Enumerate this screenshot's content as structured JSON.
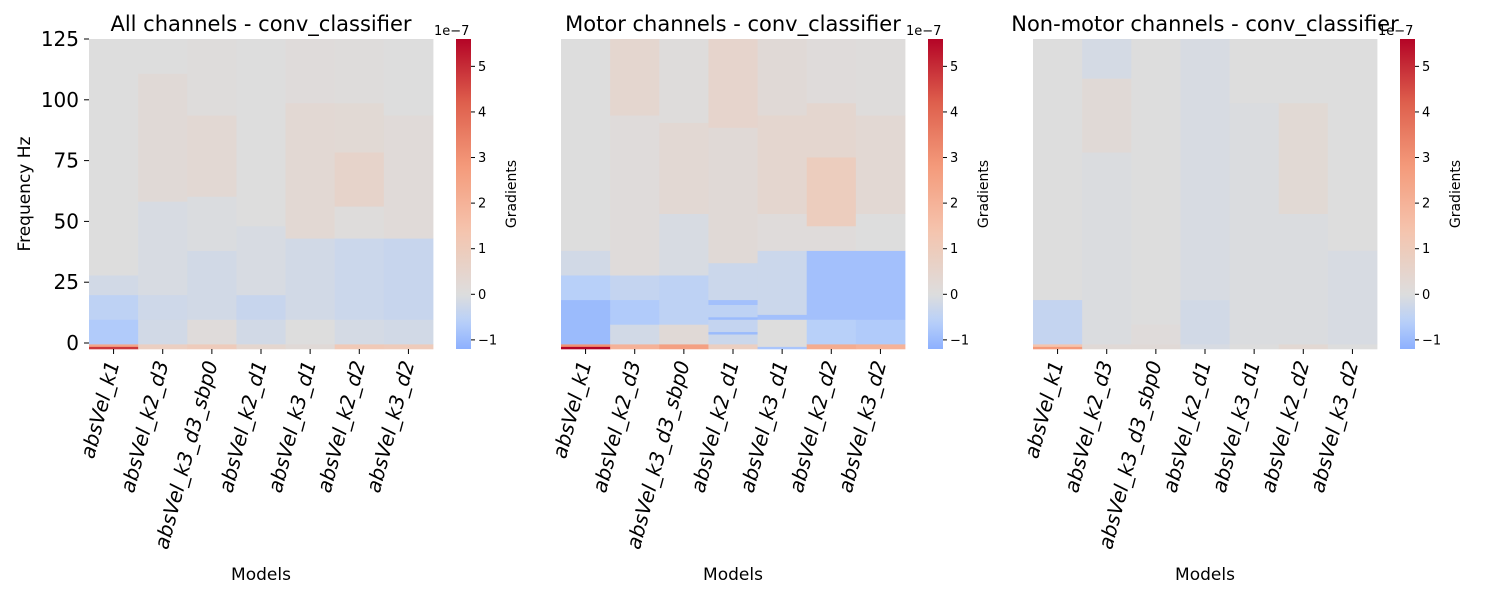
{
  "chart_data": [
    {
      "type": "heatmap",
      "title": "All channels - conv_classifier",
      "xlabel": "Models",
      "ylabel": "Frequency Hz",
      "models": [
        "absVel_k1",
        "absVel_k2_d3",
        "absVel_k3_d3_sbp0",
        "absVel_k2_d1",
        "absVel_k3_d1",
        "absVel_k2_d2",
        "absVel_k3_d2"
      ],
      "y_ticks": [
        "0",
        "25",
        "50",
        "75",
        "100",
        "125"
      ],
      "ylim": [
        0,
        125
      ],
      "colorbar": {
        "label": "Gradients",
        "exponent": "1e−7",
        "ticks": [
          "−1",
          "0",
          "1",
          "2",
          "3",
          "4",
          "5"
        ],
        "vmin": -1.2,
        "vmax": 5.6,
        "cmap": "coolwarm"
      },
      "cells": [
        {
          "model": 0,
          "from": 0,
          "to": 1,
          "value": 4.8
        },
        {
          "model": 0,
          "from": 1,
          "to": 2,
          "value": 2.4
        },
        {
          "model": 0,
          "from": 2,
          "to": 12,
          "value": -0.7
        },
        {
          "model": 0,
          "from": 12,
          "to": 22,
          "value": -0.5
        },
        {
          "model": 0,
          "from": 22,
          "to": 30,
          "value": -0.2
        },
        {
          "model": 0,
          "from": 30,
          "to": 126,
          "value": 0.0
        },
        {
          "model": 1,
          "from": 0,
          "to": 2,
          "value": 0.8
        },
        {
          "model": 1,
          "from": 2,
          "to": 12,
          "value": -0.2
        },
        {
          "model": 1,
          "from": 12,
          "to": 22,
          "value": -0.25
        },
        {
          "model": 1,
          "from": 22,
          "to": 60,
          "value": -0.1
        },
        {
          "model": 1,
          "from": 60,
          "to": 112,
          "value": 0.2
        },
        {
          "model": 1,
          "from": 112,
          "to": 126,
          "value": 0.0
        },
        {
          "model": 2,
          "from": 0,
          "to": 2,
          "value": 1.0
        },
        {
          "model": 2,
          "from": 2,
          "to": 12,
          "value": 0.1
        },
        {
          "model": 2,
          "from": 12,
          "to": 40,
          "value": -0.2
        },
        {
          "model": 2,
          "from": 40,
          "to": 62,
          "value": -0.05
        },
        {
          "model": 2,
          "from": 62,
          "to": 95,
          "value": 0.3
        },
        {
          "model": 2,
          "from": 95,
          "to": 126,
          "value": 0.05
        },
        {
          "model": 3,
          "from": 0,
          "to": 2,
          "value": 0.4
        },
        {
          "model": 3,
          "from": 2,
          "to": 12,
          "value": -0.2
        },
        {
          "model": 3,
          "from": 12,
          "to": 22,
          "value": -0.35
        },
        {
          "model": 3,
          "from": 22,
          "to": 50,
          "value": -0.1
        },
        {
          "model": 3,
          "from": 50,
          "to": 126,
          "value": 0.0
        },
        {
          "model": 4,
          "from": 0,
          "to": 2,
          "value": 0.2
        },
        {
          "model": 4,
          "from": 2,
          "to": 12,
          "value": 0.0
        },
        {
          "model": 4,
          "from": 12,
          "to": 45,
          "value": -0.2
        },
        {
          "model": 4,
          "from": 45,
          "to": 100,
          "value": 0.3
        },
        {
          "model": 4,
          "from": 100,
          "to": 126,
          "value": 0.1
        },
        {
          "model": 5,
          "from": 0,
          "to": 2,
          "value": 1.1
        },
        {
          "model": 5,
          "from": 2,
          "to": 12,
          "value": -0.15
        },
        {
          "model": 5,
          "from": 12,
          "to": 45,
          "value": -0.3
        },
        {
          "model": 5,
          "from": 45,
          "to": 58,
          "value": 0.05
        },
        {
          "model": 5,
          "from": 58,
          "to": 80,
          "value": 0.55
        },
        {
          "model": 5,
          "from": 80,
          "to": 100,
          "value": 0.25
        },
        {
          "model": 5,
          "from": 100,
          "to": 126,
          "value": 0.05
        },
        {
          "model": 6,
          "from": 0,
          "to": 2,
          "value": 1.0
        },
        {
          "model": 6,
          "from": 2,
          "to": 12,
          "value": -0.2
        },
        {
          "model": 6,
          "from": 12,
          "to": 45,
          "value": -0.35
        },
        {
          "model": 6,
          "from": 45,
          "to": 95,
          "value": 0.15
        },
        {
          "model": 6,
          "from": 95,
          "to": 126,
          "value": 0.0
        }
      ]
    },
    {
      "type": "heatmap",
      "title": "Motor channels - conv_classifier",
      "xlabel": "Models",
      "ylabel": "",
      "models": [
        "absVel_k1",
        "absVel_k2_d3",
        "absVel_k3_d3_sbp0",
        "absVel_k2_d1",
        "absVel_k3_d1",
        "absVel_k2_d2",
        "absVel_k3_d2"
      ],
      "y_ticks": [],
      "ylim": [
        0,
        125
      ],
      "colorbar": {
        "label": "Gradients",
        "exponent": "1e−7",
        "ticks": [
          "−1",
          "0",
          "1",
          "2",
          "3",
          "4",
          "5"
        ],
        "vmin": -1.2,
        "vmax": 5.6,
        "cmap": "coolwarm"
      },
      "cells": [
        {
          "model": 0,
          "from": 0,
          "to": 1,
          "value": 5.6
        },
        {
          "model": 0,
          "from": 1,
          "to": 2,
          "value": 3.0
        },
        {
          "model": 0,
          "from": 2,
          "to": 20,
          "value": -1.0
        },
        {
          "model": 0,
          "from": 20,
          "to": 30,
          "value": -0.6
        },
        {
          "model": 0,
          "from": 30,
          "to": 40,
          "value": -0.2
        },
        {
          "model": 0,
          "from": 40,
          "to": 126,
          "value": 0.0
        },
        {
          "model": 1,
          "from": 0,
          "to": 2,
          "value": 2.0
        },
        {
          "model": 1,
          "from": 2,
          "to": 10,
          "value": -0.2
        },
        {
          "model": 1,
          "from": 10,
          "to": 20,
          "value": -0.7
        },
        {
          "model": 1,
          "from": 20,
          "to": 30,
          "value": -0.4
        },
        {
          "model": 1,
          "from": 30,
          "to": 95,
          "value": 0.1
        },
        {
          "model": 1,
          "from": 95,
          "to": 126,
          "value": 0.4
        },
        {
          "model": 2,
          "from": 0,
          "to": 2,
          "value": 2.6
        },
        {
          "model": 2,
          "from": 2,
          "to": 10,
          "value": 0.2
        },
        {
          "model": 2,
          "from": 10,
          "to": 30,
          "value": -0.5
        },
        {
          "model": 2,
          "from": 30,
          "to": 55,
          "value": -0.1
        },
        {
          "model": 2,
          "from": 55,
          "to": 92,
          "value": 0.3
        },
        {
          "model": 2,
          "from": 92,
          "to": 126,
          "value": 0.05
        },
        {
          "model": 3,
          "from": 0,
          "to": 2,
          "value": 0.8
        },
        {
          "model": 3,
          "from": 2,
          "to": 6,
          "value": -0.3
        },
        {
          "model": 3,
          "from": 6,
          "to": 7,
          "value": -1.0
        },
        {
          "model": 3,
          "from": 7,
          "to": 12,
          "value": -0.4
        },
        {
          "model": 3,
          "from": 12,
          "to": 13,
          "value": -1.0
        },
        {
          "model": 3,
          "from": 13,
          "to": 18,
          "value": -0.5
        },
        {
          "model": 3,
          "from": 18,
          "to": 20,
          "value": -0.9
        },
        {
          "model": 3,
          "from": 20,
          "to": 35,
          "value": -0.3
        },
        {
          "model": 3,
          "from": 35,
          "to": 90,
          "value": 0.2
        },
        {
          "model": 3,
          "from": 90,
          "to": 126,
          "value": 0.5
        },
        {
          "model": 4,
          "from": 0,
          "to": 1,
          "value": -0.8
        },
        {
          "model": 4,
          "from": 1,
          "to": 12,
          "value": 0.0
        },
        {
          "model": 4,
          "from": 12,
          "to": 14,
          "value": -0.9
        },
        {
          "model": 4,
          "from": 14,
          "to": 40,
          "value": -0.3
        },
        {
          "model": 4,
          "from": 40,
          "to": 55,
          "value": 0.1
        },
        {
          "model": 4,
          "from": 55,
          "to": 95,
          "value": 0.4
        },
        {
          "model": 4,
          "from": 95,
          "to": 126,
          "value": 0.2
        },
        {
          "model": 5,
          "from": 0,
          "to": 2,
          "value": 2.2
        },
        {
          "model": 5,
          "from": 2,
          "to": 12,
          "value": -0.6
        },
        {
          "model": 5,
          "from": 12,
          "to": 40,
          "value": -0.9
        },
        {
          "model": 5,
          "from": 40,
          "to": 50,
          "value": 0.1
        },
        {
          "model": 5,
          "from": 50,
          "to": 78,
          "value": 0.9
        },
        {
          "model": 5,
          "from": 78,
          "to": 100,
          "value": 0.4
        },
        {
          "model": 5,
          "from": 100,
          "to": 126,
          "value": 0.1
        },
        {
          "model": 6,
          "from": 0,
          "to": 2,
          "value": 2.0
        },
        {
          "model": 6,
          "from": 2,
          "to": 12,
          "value": -0.7
        },
        {
          "model": 6,
          "from": 12,
          "to": 40,
          "value": -0.9
        },
        {
          "model": 6,
          "from": 40,
          "to": 55,
          "value": 0.0
        },
        {
          "model": 6,
          "from": 55,
          "to": 95,
          "value": 0.3
        },
        {
          "model": 6,
          "from": 95,
          "to": 126,
          "value": 0.05
        }
      ]
    },
    {
      "type": "heatmap",
      "title": "Non-motor channels - conv_classifier",
      "xlabel": "Models",
      "ylabel": "",
      "models": [
        "absVel_k1",
        "absVel_k2_d3",
        "absVel_k3_d3_sbp0",
        "absVel_k2_d1",
        "absVel_k3_d1",
        "absVel_k2_d2",
        "absVel_k3_d2"
      ],
      "y_ticks": [],
      "ylim": [
        0,
        125
      ],
      "colorbar": {
        "label": "Gradients",
        "exponent": "1e−7",
        "ticks": [
          "−1",
          "0",
          "1",
          "2",
          "3",
          "4",
          "5"
        ],
        "vmin": -1.2,
        "vmax": 5.6,
        "cmap": "coolwarm"
      },
      "cells": [
        {
          "model": 0,
          "from": 0,
          "to": 1,
          "value": 2.8
        },
        {
          "model": 0,
          "from": 1,
          "to": 2,
          "value": 1.4
        },
        {
          "model": 0,
          "from": 2,
          "to": 20,
          "value": -0.4
        },
        {
          "model": 0,
          "from": 20,
          "to": 126,
          "value": 0.0
        },
        {
          "model": 1,
          "from": 0,
          "to": 2,
          "value": 0.2
        },
        {
          "model": 1,
          "from": 2,
          "to": 80,
          "value": -0.05
        },
        {
          "model": 1,
          "from": 80,
          "to": 110,
          "value": 0.2
        },
        {
          "model": 1,
          "from": 110,
          "to": 126,
          "value": -0.15
        },
        {
          "model": 2,
          "from": 0,
          "to": 2,
          "value": 0.2
        },
        {
          "model": 2,
          "from": 2,
          "to": 10,
          "value": 0.1
        },
        {
          "model": 2,
          "from": 10,
          "to": 126,
          "value": 0.0
        },
        {
          "model": 3,
          "from": 0,
          "to": 2,
          "value": -0.1
        },
        {
          "model": 3,
          "from": 2,
          "to": 20,
          "value": -0.2
        },
        {
          "model": 3,
          "from": 20,
          "to": 126,
          "value": -0.1
        },
        {
          "model": 4,
          "from": 0,
          "to": 2,
          "value": 0.0
        },
        {
          "model": 4,
          "from": 2,
          "to": 100,
          "value": -0.05
        },
        {
          "model": 4,
          "from": 100,
          "to": 126,
          "value": 0.0
        },
        {
          "model": 5,
          "from": 0,
          "to": 2,
          "value": 0.3
        },
        {
          "model": 5,
          "from": 2,
          "to": 55,
          "value": -0.05
        },
        {
          "model": 5,
          "from": 55,
          "to": 100,
          "value": 0.25
        },
        {
          "model": 5,
          "from": 100,
          "to": 126,
          "value": 0.0
        },
        {
          "model": 6,
          "from": 0,
          "to": 2,
          "value": 0.0
        },
        {
          "model": 6,
          "from": 2,
          "to": 40,
          "value": -0.1
        },
        {
          "model": 6,
          "from": 40,
          "to": 126,
          "value": 0.0
        }
      ]
    }
  ]
}
